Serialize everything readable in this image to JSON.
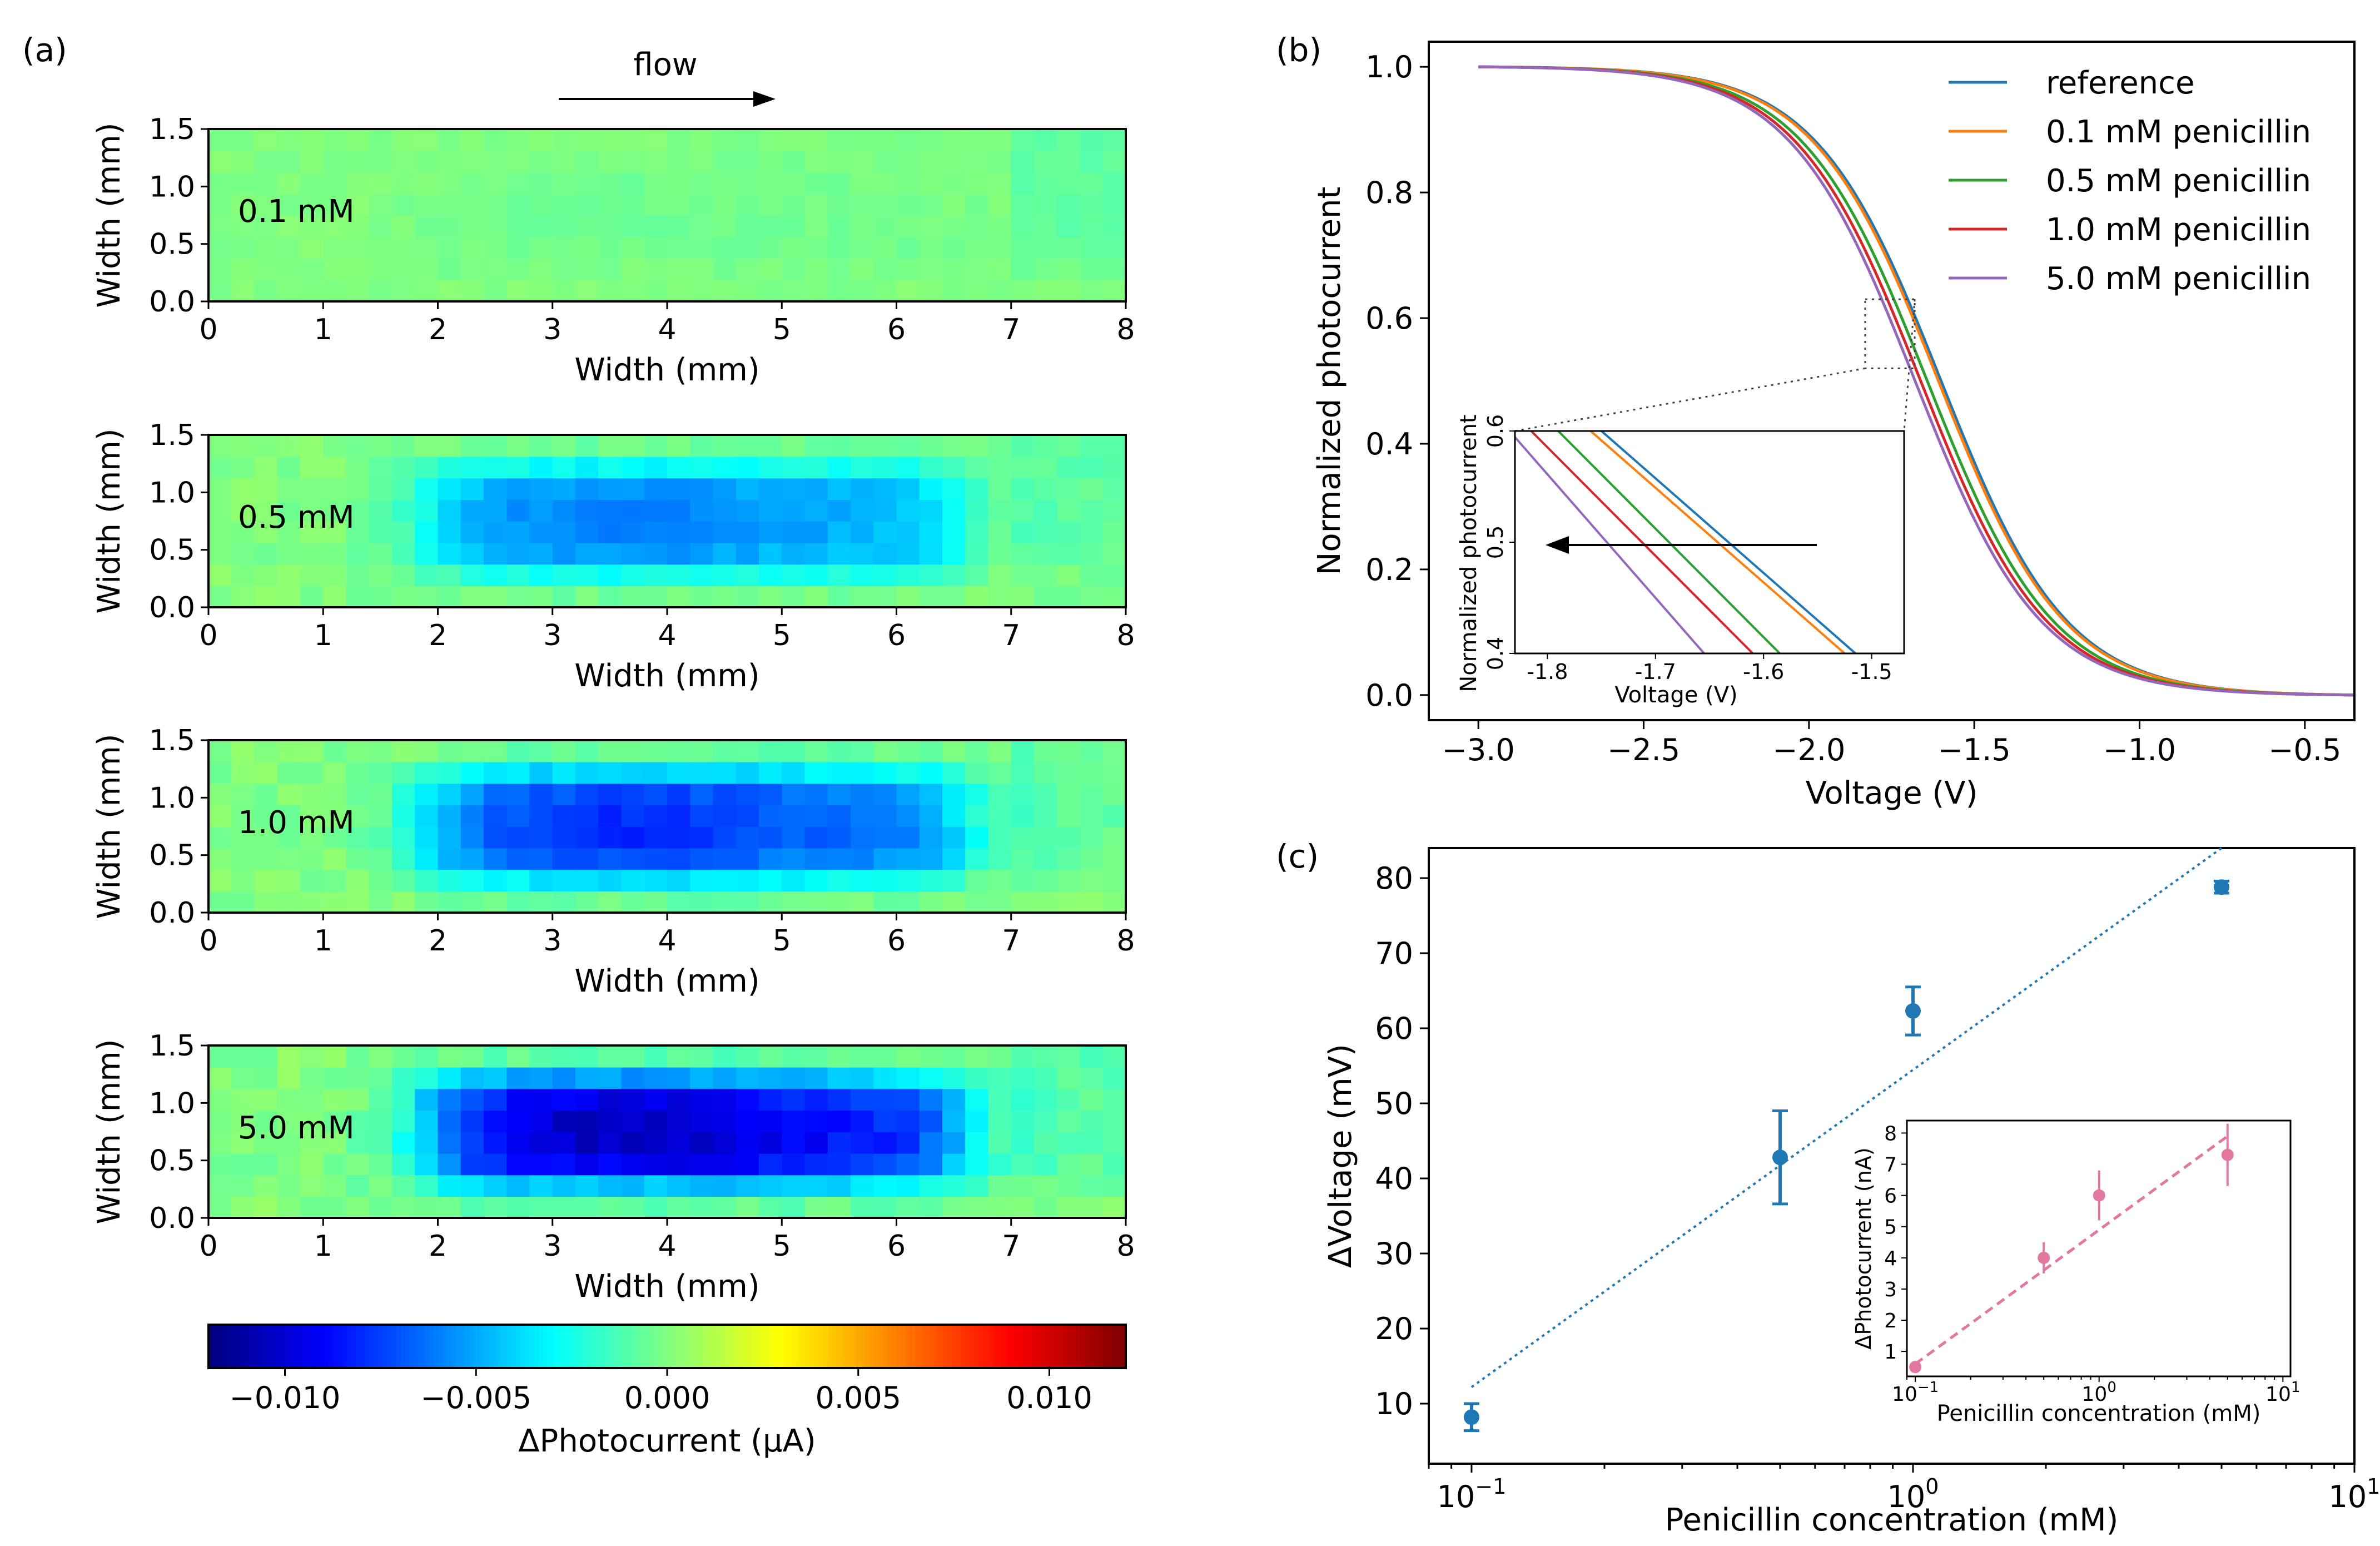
{
  "panel_labels": {
    "a": "(a)",
    "b": "(b)",
    "c": "(c)"
  },
  "colors": {
    "reference": "#1f77b4",
    "c01": "#ff7f0e",
    "c05": "#2ca02c",
    "c10": "#d62728",
    "c50": "#9467bd",
    "inset_c": "#e377a0",
    "main_c": "#1f77b4"
  },
  "chart_data": [
    {
      "type": "heatmap",
      "panel": "a",
      "flow_label": "flow",
      "xlabel": "Width (mm)",
      "ylabel": "Width (mm)",
      "xlim": [
        0,
        8
      ],
      "ylim": [
        0,
        1.5
      ],
      "xticks": [
        "0",
        "1",
        "2",
        "3",
        "4",
        "5",
        "6",
        "7",
        "8"
      ],
      "yticks": [
        "0.0",
        "0.5",
        "1.0",
        "1.5"
      ],
      "colormap": "jet",
      "colorbar": {
        "label": "ΔPhotocurrent (μA)",
        "vmin": -0.012,
        "vmax": 0.012,
        "ticks": [
          -0.01,
          -0.005,
          0.0,
          0.005,
          0.01
        ],
        "tick_labels": [
          "−0.010",
          "−0.005",
          "0.000",
          "0.005",
          "0.010"
        ]
      },
      "maps": [
        {
          "label": "0.1 mM",
          "peak": -0.0004
        },
        {
          "label": "0.5 mM",
          "peak": -0.006
        },
        {
          "label": "1.0 mM",
          "peak": -0.008
        },
        {
          "label": "5.0 mM",
          "peak": -0.0105
        }
      ]
    },
    {
      "type": "line",
      "panel": "b",
      "xlabel": "Voltage (V)",
      "ylabel": "Normalized photocurrent",
      "xlim": [
        -3.15,
        -0.35
      ],
      "ylim": [
        -0.04,
        1.04
      ],
      "xticks": [
        -3.0,
        -2.5,
        -2.0,
        -1.5,
        -1.0,
        -0.5
      ],
      "xtick_labels": [
        "−3.0",
        "−2.5",
        "−2.0",
        "−1.5",
        "−1.0",
        "−0.5"
      ],
      "yticks": [
        0.0,
        0.2,
        0.4,
        0.6,
        0.8,
        1.0
      ],
      "ytick_labels": [
        "0.0",
        "0.2",
        "0.4",
        "0.6",
        "0.8",
        "1.0"
      ],
      "legend_position": "top-right",
      "series": [
        {
          "name": "reference",
          "color_key": "reference",
          "shift": 0.0
        },
        {
          "name": "0.1 mM penicillin",
          "color_key": "c01",
          "shift": 0.008
        },
        {
          "name": "0.5 mM penicillin",
          "color_key": "c05",
          "shift": 0.042
        },
        {
          "name": "1.0 mM penicillin",
          "color_key": "c10",
          "shift": 0.062
        },
        {
          "name": "5.0 mM penicillin",
          "color_key": "c50",
          "shift": 0.079
        }
      ],
      "inset": {
        "xlabel": "Voltage (V)",
        "ylabel": "Normalized photocurrent",
        "xlim": [
          -1.83,
          -1.47
        ],
        "ylim": [
          0.4,
          0.6
        ],
        "xticks": [
          -1.8,
          -1.7,
          -1.6,
          -1.5
        ],
        "xtick_labels": [
          "-1.8",
          "-1.7",
          "-1.6",
          "-1.5"
        ],
        "yticks": [
          0.4,
          0.5,
          0.6
        ],
        "ytick_labels": [
          "0.4",
          "0.5",
          "0.6"
        ]
      }
    },
    {
      "type": "scatter",
      "panel": "c",
      "xlabel": "Penicillin concentration (mM)",
      "ylabel": "ΔVoltage (mV)",
      "xscale": "log",
      "xlim": [
        0.08,
        10
      ],
      "ylim": [
        2,
        84
      ],
      "xtick_labels": [
        "10^-1",
        "10^0",
        "10^1"
      ],
      "yticks": [
        10,
        20,
        30,
        40,
        50,
        60,
        70,
        80
      ],
      "x": [
        0.1,
        0.5,
        1.0,
        5.0
      ],
      "y": [
        8.2,
        42.8,
        62.3,
        78.8
      ],
      "yerr": [
        1.8,
        6.2,
        3.2,
        0.8
      ],
      "fit_line": {
        "x": [
          0.1,
          5.0
        ],
        "y": [
          12.2,
          84.0
        ],
        "style": "dotted"
      },
      "inset": {
        "xlabel": "Penicillin concentration (mM)",
        "ylabel": "ΔPhotocurrent (nA)",
        "xscale": "log",
        "xlim": [
          0.09,
          11
        ],
        "ylim": [
          0.2,
          8.4
        ],
        "yticks": [
          1,
          2,
          3,
          4,
          5,
          6,
          7,
          8
        ],
        "x": [
          0.1,
          0.5,
          1.0,
          5.0
        ],
        "y": [
          0.5,
          4.0,
          6.0,
          7.3
        ],
        "yerr": [
          0.1,
          0.5,
          0.8,
          1.0
        ],
        "fit_line": {
          "x": [
            0.1,
            5.0
          ],
          "y": [
            0.6,
            7.9
          ],
          "style": "dashed"
        }
      }
    }
  ]
}
